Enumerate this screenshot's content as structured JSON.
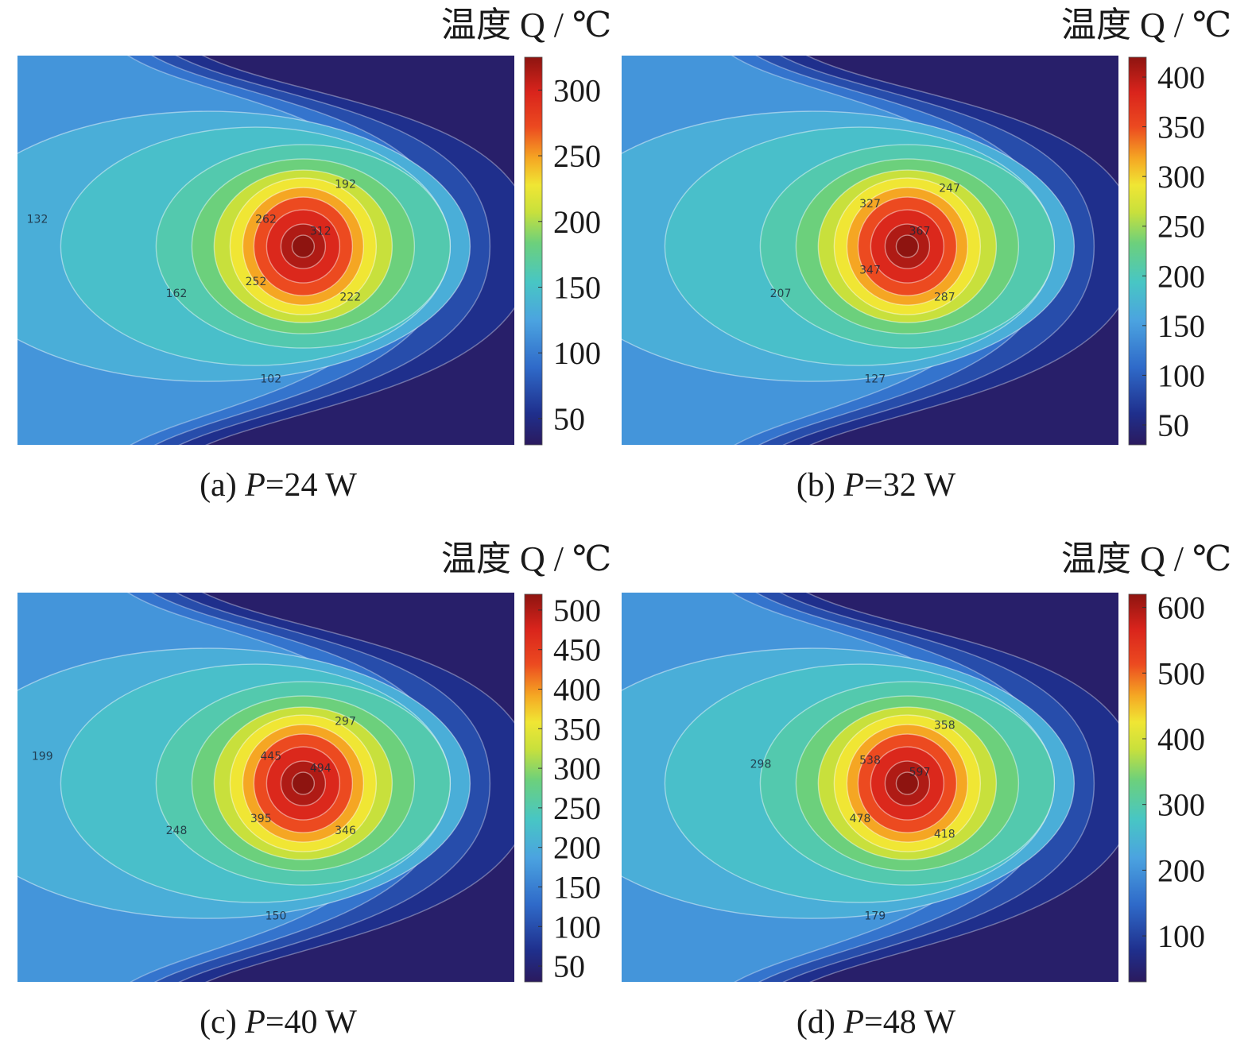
{
  "chart_data": [
    {
      "type": "heatmap",
      "title": "温度 Q / ℃",
      "caption": {
        "label": "(a)",
        "variable": "P",
        "value": "=24 W"
      },
      "colorbar": {
        "ticks": [
          50,
          100,
          150,
          200,
          250,
          300
        ],
        "min": 30,
        "max": 325
      },
      "field": {
        "peak": 325,
        "ambient": 30
      },
      "contour_labels": [
        {
          "text": "132",
          "x": 0.04,
          "y": 0.43
        },
        {
          "text": "192",
          "x": 0.66,
          "y": 0.34
        },
        {
          "text": "262",
          "x": 0.5,
          "y": 0.43
        },
        {
          "text": "312",
          "x": 0.61,
          "y": 0.46
        },
        {
          "text": "162",
          "x": 0.32,
          "y": 0.62
        },
        {
          "text": "252",
          "x": 0.48,
          "y": 0.59
        },
        {
          "text": "222",
          "x": 0.67,
          "y": 0.63
        },
        {
          "text": "102",
          "x": 0.51,
          "y": 0.84
        }
      ]
    },
    {
      "type": "heatmap",
      "title": "温度 Q / ℃",
      "caption": {
        "label": "(b)",
        "variable": "P",
        "value": "=32 W"
      },
      "colorbar": {
        "ticks": [
          50,
          100,
          150,
          200,
          250,
          300,
          350,
          400
        ],
        "min": 30,
        "max": 420
      },
      "field": {
        "peak": 420,
        "ambient": 30
      },
      "contour_labels": [
        {
          "text": "247",
          "x": 0.66,
          "y": 0.35
        },
        {
          "text": "327",
          "x": 0.5,
          "y": 0.39
        },
        {
          "text": "367",
          "x": 0.6,
          "y": 0.46
        },
        {
          "text": "347",
          "x": 0.5,
          "y": 0.56
        },
        {
          "text": "207",
          "x": 0.32,
          "y": 0.62
        },
        {
          "text": "287",
          "x": 0.65,
          "y": 0.63
        },
        {
          "text": "127",
          "x": 0.51,
          "y": 0.84
        }
      ]
    },
    {
      "type": "heatmap",
      "title": "温度 Q / ℃",
      "caption": {
        "label": "(c)",
        "variable": "P",
        "value": "=40 W"
      },
      "colorbar": {
        "ticks": [
          50,
          100,
          150,
          200,
          250,
          300,
          350,
          400,
          450,
          500
        ],
        "min": 30,
        "max": 520
      },
      "field": {
        "peak": 520,
        "ambient": 30
      },
      "contour_labels": [
        {
          "text": "199",
          "x": 0.05,
          "y": 0.43
        },
        {
          "text": "297",
          "x": 0.66,
          "y": 0.34
        },
        {
          "text": "445",
          "x": 0.51,
          "y": 0.43
        },
        {
          "text": "494",
          "x": 0.61,
          "y": 0.46
        },
        {
          "text": "248",
          "x": 0.32,
          "y": 0.62
        },
        {
          "text": "395",
          "x": 0.49,
          "y": 0.59
        },
        {
          "text": "346",
          "x": 0.66,
          "y": 0.62
        },
        {
          "text": "150",
          "x": 0.52,
          "y": 0.84
        }
      ]
    },
    {
      "type": "heatmap",
      "title": "温度 Q / ℃",
      "caption": {
        "label": "(d)",
        "variable": "P",
        "value": "=48 W"
      },
      "colorbar": {
        "ticks": [
          100,
          200,
          300,
          400,
          500,
          600
        ],
        "min": 30,
        "max": 620
      },
      "field": {
        "peak": 620,
        "ambient": 30
      },
      "contour_labels": [
        {
          "text": "298",
          "x": 0.28,
          "y": 0.45
        },
        {
          "text": "358",
          "x": 0.65,
          "y": 0.35
        },
        {
          "text": "538",
          "x": 0.5,
          "y": 0.44
        },
        {
          "text": "597",
          "x": 0.6,
          "y": 0.47
        },
        {
          "text": "478",
          "x": 0.48,
          "y": 0.59
        },
        {
          "text": "418",
          "x": 0.65,
          "y": 0.63
        },
        {
          "text": "179",
          "x": 0.51,
          "y": 0.84
        }
      ]
    }
  ]
}
